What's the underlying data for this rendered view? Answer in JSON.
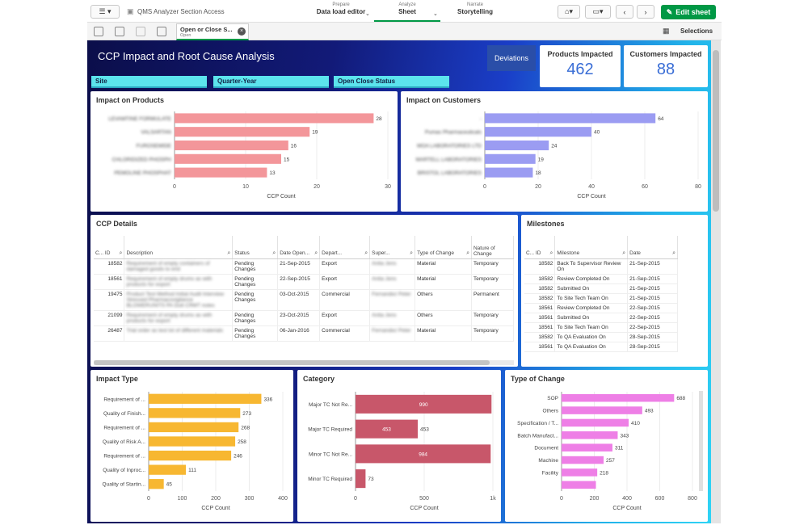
{
  "toolbar": {
    "app_name": "QMS Analyzer Section Access",
    "nav": [
      {
        "small": "Prepare",
        "big": "Data load editor"
      },
      {
        "small": "Analyze",
        "big": "Sheet"
      },
      {
        "small": "Narrate",
        "big": "Storytelling"
      }
    ],
    "edit_label": "Edit sheet"
  },
  "selection_bar": {
    "tab_title": "Open or Close S...",
    "tab_sub": "Open",
    "selections_label": "Selections"
  },
  "sheet": {
    "title": "CCP Impact and Root Cause Analysis",
    "filters": [
      "Site",
      "Quarter-Year",
      "Open Close Status"
    ],
    "deviations_label": "Deviations",
    "kpis": [
      {
        "label": "Products Impacted",
        "value": "462"
      },
      {
        "label": "Customers Impacted",
        "value": "88"
      }
    ]
  },
  "impact_products": {
    "title": "Impact on Products",
    "chart_data": {
      "type": "bar",
      "orientation": "horizontal",
      "categories": [
        "LEVAMTINE FORMULATE",
        "VALSARTAN",
        "FUROSEMIDE",
        "CHLORIDIZED PHOSPH",
        "PEMOLINE PHOSPHAT"
      ],
      "values": [
        28,
        19,
        16,
        15,
        13
      ],
      "xlabel": "CCP Count",
      "xticks": [
        "0",
        "10",
        "20",
        "30"
      ],
      "xlim": [
        0,
        30
      ],
      "color": "#f3969a"
    }
  },
  "impact_customers": {
    "title": "Impact on Customers",
    "chart_data": {
      "type": "bar",
      "orientation": "horizontal",
      "categories": [
        "-",
        "Pumas Pharmaceuticals",
        "MOA LABORATORIES LTD",
        "MARTELL LABORATORIES",
        "BRISTOL LABORATORIES"
      ],
      "values": [
        64,
        40,
        24,
        19,
        18
      ],
      "xlabel": "CCP Count",
      "xticks": [
        "0",
        "20",
        "40",
        "60",
        "80"
      ],
      "xlim": [
        0,
        80
      ],
      "color": "#9b9cf2"
    }
  },
  "ccp_details": {
    "title": "CCP Details",
    "columns": [
      "C... ID",
      "Description",
      "Status",
      "Date Open...",
      "Depart...",
      "Super...",
      "Type of Change",
      "Nature of Change"
    ],
    "rows": [
      [
        "18582",
        "Requirement of empty containers of damaged goods to end",
        "Pending Changes",
        "21-Sep-2015",
        "Export",
        "Anita Jens",
        "Material",
        "Temporary"
      ],
      [
        "18561",
        "Requirement of empty drums as with products for export",
        "Pending Changes",
        "22-Sep-2015",
        "Export",
        "Anita Jens",
        "Material",
        "Temporary"
      ],
      [
        "19475",
        "Product Test Method Initial Audit Interview Stressed Pharmacovigilance BLOWERUNITS PA Dutt CRMT notes",
        "Pending Changes",
        "03-Oct-2015",
        "Commercial",
        "Fernandez Peter",
        "Others",
        "Permanent"
      ],
      [
        "21099",
        "Requirement of empty drums as with products for export",
        "Pending Changes",
        "23-Oct-2015",
        "Export",
        "Anita Jens",
        "Others",
        "Temporary"
      ],
      [
        "26487",
        "Trial order as test lot of different materials",
        "Pending Changes",
        "06-Jan-2016",
        "Commercial",
        "Fernandez Peter",
        "Material",
        "Temporary"
      ]
    ]
  },
  "milestones": {
    "title": "Milestones",
    "columns": [
      "C... ID",
      "Milestone",
      "Date"
    ],
    "rows": [
      [
        "18582",
        "Back To Supervisor Review On",
        "21-Sep-2015"
      ],
      [
        "18582",
        "Review Completed On",
        "21-Sep-2015"
      ],
      [
        "18582",
        "Submitted On",
        "21-Sep-2015"
      ],
      [
        "18582",
        "To Site Tech Team On",
        "21-Sep-2015"
      ],
      [
        "18561",
        "Review Completed On",
        "22-Sep-2015"
      ],
      [
        "18561",
        "Submitted On",
        "22-Sep-2015"
      ],
      [
        "18561",
        "To Site Tech Team On",
        "22-Sep-2015"
      ],
      [
        "18582",
        "To QA Evaluation On",
        "28-Sep-2015"
      ],
      [
        "18561",
        "To QA Evaluation On",
        "28-Sep-2015"
      ]
    ]
  },
  "impact_type": {
    "title": "Impact Type",
    "chart_data": {
      "type": "bar",
      "orientation": "horizontal",
      "categories": [
        "Requirement of ...",
        "Quality of Finish...",
        "Requirement of ...",
        "Quality of Risk A...",
        "Requirement of ...",
        "Quality of Inproc...",
        "Quality of Startin..."
      ],
      "values": [
        336,
        273,
        268,
        258,
        246,
        111,
        45
      ],
      "xlabel": "CCP Count",
      "xticks": [
        "0",
        "100",
        "200",
        "300",
        "400"
      ],
      "xlim": [
        0,
        400
      ],
      "color": "#f7b731"
    }
  },
  "category": {
    "title": "Category",
    "chart_data": {
      "type": "bar",
      "orientation": "horizontal",
      "categories": [
        "Major TC Not Re...",
        "Major TC Required",
        "Minor TC Not Re...",
        "Minor TC Required"
      ],
      "values": [
        990,
        453,
        984,
        73
      ],
      "labels": [
        "990",
        "453",
        "984",
        "73"
      ],
      "xlabel": "CCP Count",
      "xticks": [
        "0",
        "500",
        "1k"
      ],
      "xlim": [
        0,
        1000
      ],
      "color": "#c8576a"
    }
  },
  "type_of_change": {
    "title": "Type of Change",
    "chart_data": {
      "type": "bar",
      "orientation": "horizontal",
      "categories": [
        "SOP",
        "Others",
        "Specification / T...",
        "Batch Manufact...",
        "Document",
        "Machine",
        "Facility",
        ""
      ],
      "values": [
        688,
        493,
        410,
        343,
        311,
        257,
        218,
        210
      ],
      "labels": [
        "688",
        "493",
        "410",
        "343",
        "311",
        "257",
        "218",
        ""
      ],
      "xlabel": "CCP Count",
      "xticks": [
        "0",
        "200",
        "400",
        "600",
        "800"
      ],
      "xlim": [
        0,
        800
      ],
      "color": "#ee7fe6"
    }
  }
}
